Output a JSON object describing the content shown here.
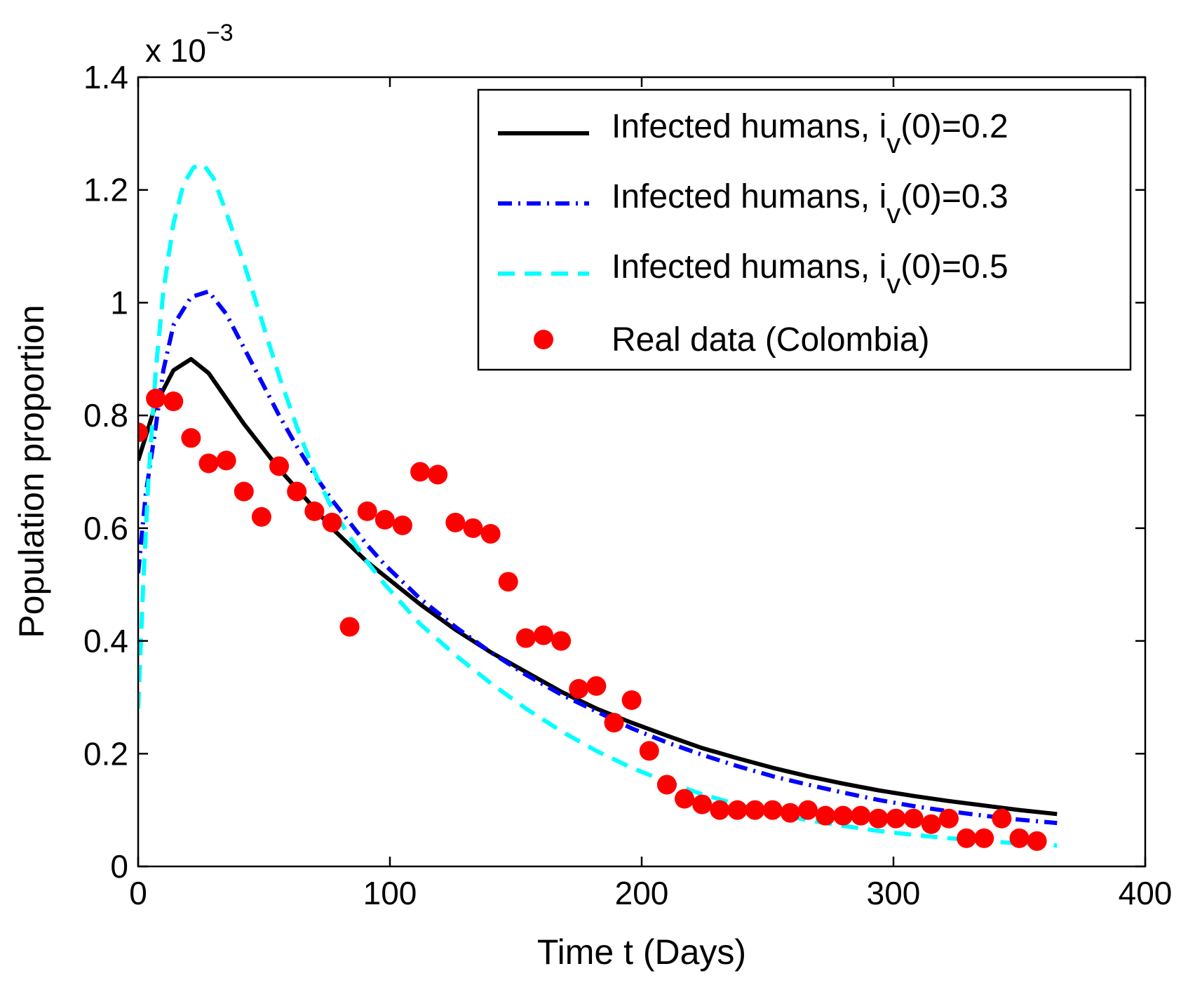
{
  "chart_data": {
    "type": "line",
    "xlabel": "Time t (Days)",
    "ylabel": "Population proportion",
    "y_multiplier": {
      "base": "x 10",
      "exponent": "−3"
    },
    "xlim": [
      0,
      400
    ],
    "ylim": [
      0,
      1.4
    ],
    "xticks": [
      0,
      100,
      200,
      300,
      400
    ],
    "xtick_labels": [
      "0",
      "100",
      "200",
      "300",
      "400"
    ],
    "yticks": [
      0,
      0.2,
      0.4,
      0.6,
      0.8,
      1.0,
      1.2,
      1.4
    ],
    "ytick_labels": [
      "0",
      "0.2",
      "0.4",
      "0.6",
      "0.8",
      "1",
      "1.2",
      "1.4"
    ],
    "grid": false,
    "legend_position": "top-right",
    "series": [
      {
        "legend_prefix": "Infected humans, i",
        "legend_sub": "v",
        "legend_suffix": "(0)=0.2",
        "color": "#000000",
        "style": "solid",
        "x": [
          0,
          7,
          14,
          21,
          28,
          35,
          42,
          49,
          56,
          63,
          70,
          77,
          84,
          91,
          98,
          105,
          112,
          126,
          140,
          154,
          168,
          182,
          196,
          210,
          224,
          238,
          252,
          266,
          280,
          294,
          308,
          322,
          336,
          350,
          365
        ],
        "y": [
          0.72,
          0.82,
          0.88,
          0.9,
          0.875,
          0.83,
          0.785,
          0.745,
          0.705,
          0.67,
          0.635,
          0.6,
          0.57,
          0.54,
          0.515,
          0.49,
          0.465,
          0.42,
          0.38,
          0.345,
          0.31,
          0.28,
          0.255,
          0.232,
          0.21,
          0.192,
          0.175,
          0.16,
          0.147,
          0.135,
          0.125,
          0.116,
          0.108,
          0.1,
          0.093
        ]
      },
      {
        "legend_prefix": "Infected humans, i",
        "legend_sub": "v",
        "legend_suffix": "(0)=0.3",
        "color": "#0000ff",
        "style": "dashdot",
        "x": [
          0,
          3,
          7,
          10,
          14,
          21,
          28,
          35,
          42,
          49,
          56,
          63,
          70,
          77,
          84,
          91,
          98,
          105,
          112,
          126,
          140,
          154,
          168,
          182,
          196,
          210,
          224,
          238,
          252,
          266,
          280,
          294,
          308,
          322,
          336,
          350,
          365
        ],
        "y": [
          0.52,
          0.66,
          0.78,
          0.88,
          0.96,
          1.01,
          1.02,
          0.98,
          0.92,
          0.86,
          0.8,
          0.745,
          0.695,
          0.65,
          0.61,
          0.57,
          0.535,
          0.505,
          0.475,
          0.425,
          0.38,
          0.34,
          0.305,
          0.275,
          0.245,
          0.22,
          0.198,
          0.178,
          0.16,
          0.145,
          0.131,
          0.118,
          0.107,
          0.098,
          0.09,
          0.083,
          0.077
        ]
      },
      {
        "legend_prefix": "Infected humans, i",
        "legend_sub": "v",
        "legend_suffix": "(0)=0.5",
        "color": "#00ffff",
        "style": "dashed",
        "x": [
          0,
          2,
          4,
          7,
          10,
          14,
          18,
          22,
          26,
          30,
          35,
          42,
          49,
          56,
          63,
          70,
          77,
          84,
          91,
          98,
          105,
          112,
          126,
          140,
          154,
          168,
          182,
          196,
          210,
          224,
          238,
          252,
          266,
          280,
          294,
          308,
          322,
          336,
          350,
          365
        ],
        "y": [
          0.28,
          0.5,
          0.68,
          0.88,
          1.02,
          1.14,
          1.21,
          1.24,
          1.245,
          1.22,
          1.16,
          1.07,
          0.97,
          0.87,
          0.78,
          0.7,
          0.635,
          0.585,
          0.54,
          0.5,
          0.465,
          0.43,
          0.375,
          0.325,
          0.28,
          0.24,
          0.205,
          0.175,
          0.15,
          0.128,
          0.11,
          0.095,
          0.082,
          0.072,
          0.063,
          0.056,
          0.05,
          0.045,
          0.041,
          0.037
        ]
      },
      {
        "name": "Real data (Colombia)",
        "color": "#ff0000",
        "style": "markers",
        "x": [
          0,
          7,
          14,
          21,
          28,
          35,
          42,
          49,
          56,
          63,
          70,
          77,
          84,
          91,
          98,
          105,
          112,
          119,
          126,
          133,
          140,
          147,
          154,
          161,
          168,
          175,
          182,
          189,
          196,
          203,
          210,
          217,
          224,
          231,
          238,
          245,
          252,
          259,
          266,
          273,
          280,
          287,
          294,
          301,
          308,
          315,
          322,
          329,
          336,
          343,
          350,
          357
        ],
        "y": [
          0.77,
          0.83,
          0.825,
          0.76,
          0.715,
          0.72,
          0.665,
          0.62,
          0.71,
          0.665,
          0.63,
          0.61,
          0.425,
          0.63,
          0.615,
          0.605,
          0.7,
          0.695,
          0.61,
          0.6,
          0.59,
          0.505,
          0.405,
          0.41,
          0.4,
          0.315,
          0.32,
          0.255,
          0.295,
          0.205,
          0.145,
          0.12,
          0.11,
          0.1,
          0.1,
          0.1,
          0.1,
          0.095,
          0.1,
          0.09,
          0.09,
          0.09,
          0.085,
          0.085,
          0.085,
          0.075,
          0.085,
          0.05,
          0.05,
          0.085,
          0.05,
          0.045
        ]
      }
    ]
  }
}
